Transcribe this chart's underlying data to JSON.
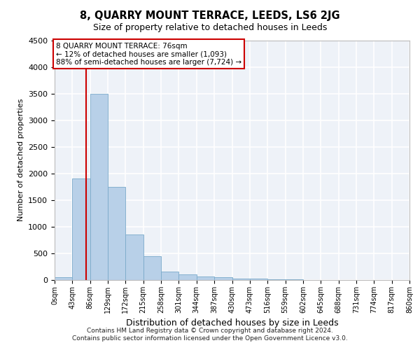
{
  "title": "8, QUARRY MOUNT TERRACE, LEEDS, LS6 2JG",
  "subtitle": "Size of property relative to detached houses in Leeds",
  "xlabel": "Distribution of detached houses by size in Leeds",
  "ylabel": "Number of detached properties",
  "bar_color": "#b8d0e8",
  "bar_edge_color": "#7aaaca",
  "background_color": "#eef2f8",
  "grid_color": "#ffffff",
  "bin_edges": [
    0,
    43,
    86,
    129,
    172,
    215,
    258,
    301,
    344,
    387,
    430,
    473,
    516,
    559,
    602,
    645,
    688,
    731,
    774,
    817,
    860
  ],
  "bar_heights": [
    50,
    1900,
    3500,
    1750,
    850,
    450,
    160,
    100,
    70,
    55,
    30,
    20,
    12,
    8,
    5,
    3,
    2,
    1,
    1,
    0
  ],
  "property_size": 76,
  "annotation_line1": "8 QUARRY MOUNT TERRACE: 76sqm",
  "annotation_line2": "← 12% of detached houses are smaller (1,093)",
  "annotation_line3": "88% of semi-detached houses are larger (7,724) →",
  "annotation_box_color": "#cc0000",
  "red_line_color": "#cc0000",
  "ylim": [
    0,
    4500
  ],
  "yticks": [
    0,
    500,
    1000,
    1500,
    2000,
    2500,
    3000,
    3500,
    4000,
    4500
  ],
  "xtick_labels": [
    "0sqm",
    "43sqm",
    "86sqm",
    "129sqm",
    "172sqm",
    "215sqm",
    "258sqm",
    "301sqm",
    "344sqm",
    "387sqm",
    "430sqm",
    "473sqm",
    "516sqm",
    "559sqm",
    "602sqm",
    "645sqm",
    "688sqm",
    "731sqm",
    "774sqm",
    "817sqm",
    "860sqm"
  ],
  "footer_line1": "Contains HM Land Registry data © Crown copyright and database right 2024.",
  "footer_line2": "Contains public sector information licensed under the Open Government Licence v3.0."
}
